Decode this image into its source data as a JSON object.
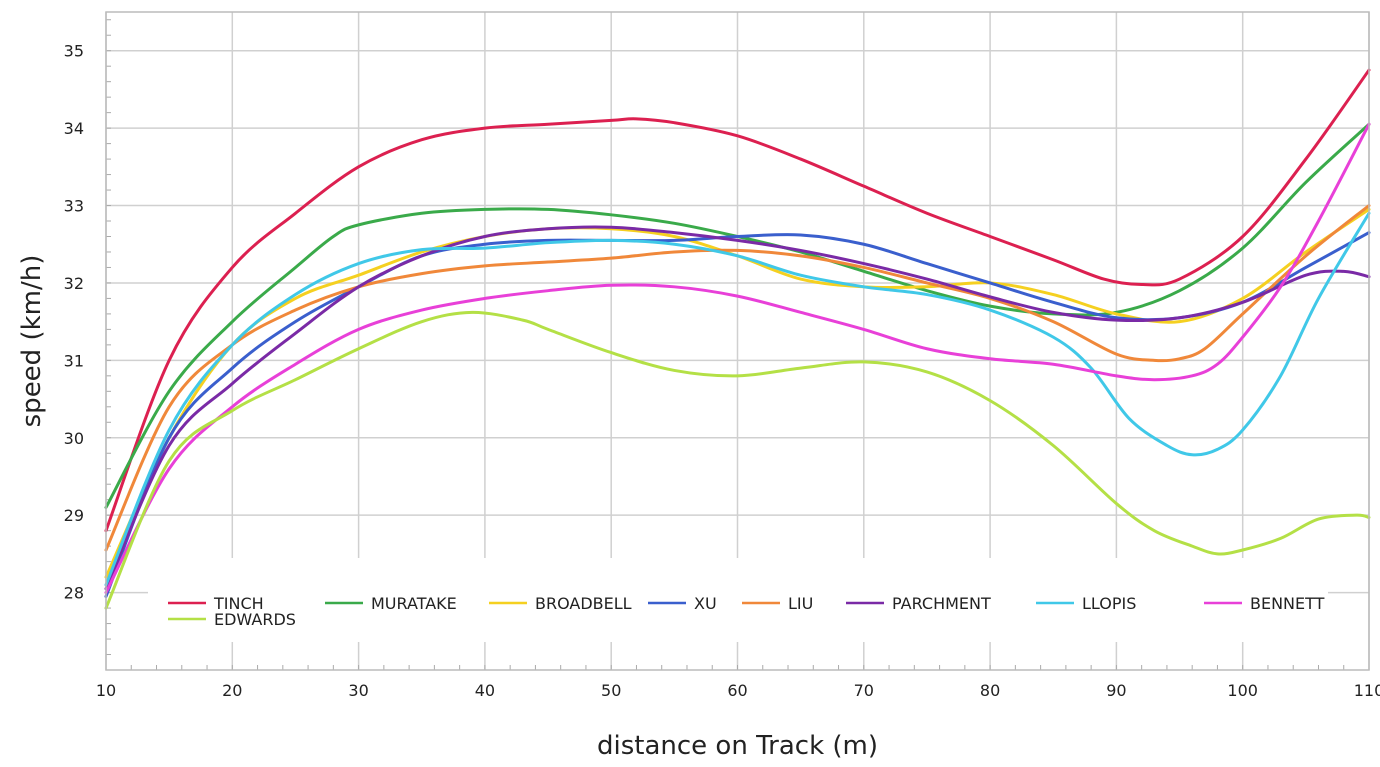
{
  "chart_data": {
    "type": "line",
    "title": "",
    "xlabel": "distance on Track (m)",
    "ylabel": "speed (km/h)",
    "xlim": [
      10,
      110
    ],
    "ylim": [
      27,
      35.5
    ],
    "x_ticks": [
      10,
      20,
      30,
      40,
      50,
      60,
      70,
      80,
      90,
      100,
      110
    ],
    "y_ticks": [
      28,
      29,
      30,
      31,
      32,
      33,
      34,
      35
    ],
    "grid": true,
    "legend_position": "bottom-left inside plot",
    "series": [
      {
        "name": "TINCH",
        "color": "#dc2050",
        "x": [
          10,
          15,
          20,
          25,
          30,
          35,
          40,
          45,
          50,
          52,
          55,
          60,
          65,
          70,
          75,
          80,
          85,
          89,
          92,
          95,
          100,
          105,
          110
        ],
        "y": [
          28.8,
          31.0,
          32.2,
          32.9,
          33.5,
          33.85,
          34.0,
          34.05,
          34.1,
          34.12,
          34.07,
          33.9,
          33.6,
          33.25,
          32.9,
          32.6,
          32.3,
          32.05,
          31.98,
          32.05,
          32.6,
          33.6,
          34.75
        ]
      },
      {
        "name": "MURATAKE",
        "color": "#3aaa4a",
        "x": [
          10,
          15,
          20,
          25,
          28,
          30,
          35,
          40,
          45,
          50,
          55,
          60,
          65,
          70,
          75,
          80,
          85,
          90,
          95,
          100,
          105,
          110
        ],
        "y": [
          29.1,
          30.6,
          31.5,
          32.2,
          32.6,
          32.75,
          32.9,
          32.95,
          32.95,
          32.88,
          32.77,
          32.6,
          32.4,
          32.15,
          31.9,
          31.7,
          31.6,
          31.62,
          31.9,
          32.45,
          33.3,
          34.05
        ]
      },
      {
        "name": "BROADBELL",
        "color": "#f5d020",
        "x": [
          10,
          15,
          20,
          25,
          30,
          35,
          40,
          45,
          50,
          55,
          60,
          65,
          70,
          75,
          80,
          85,
          90,
          95,
          100,
          105,
          110
        ],
        "y": [
          28.2,
          30.0,
          31.2,
          31.8,
          32.1,
          32.4,
          32.6,
          32.7,
          32.7,
          32.6,
          32.35,
          32.05,
          31.95,
          31.95,
          32.0,
          31.85,
          31.6,
          31.5,
          31.8,
          32.4,
          32.95
        ]
      },
      {
        "name": "XU",
        "color": "#3a5fcd",
        "x": [
          10,
          15,
          20,
          25,
          30,
          35,
          40,
          45,
          50,
          55,
          60,
          65,
          70,
          75,
          80,
          85,
          90,
          95,
          100,
          105,
          110
        ],
        "y": [
          27.95,
          30.0,
          30.9,
          31.5,
          31.95,
          32.35,
          32.5,
          32.55,
          32.55,
          32.55,
          32.6,
          32.62,
          32.5,
          32.25,
          32.0,
          31.75,
          31.55,
          31.55,
          31.75,
          32.2,
          32.65
        ]
      },
      {
        "name": "LIU",
        "color": "#f0883a",
        "x": [
          10,
          15,
          20,
          25,
          30,
          35,
          40,
          45,
          50,
          55,
          60,
          65,
          70,
          75,
          80,
          85,
          90,
          93,
          95,
          97,
          100,
          105,
          110
        ],
        "y": [
          28.55,
          30.4,
          31.2,
          31.65,
          31.95,
          32.12,
          32.22,
          32.27,
          32.32,
          32.4,
          32.42,
          32.35,
          32.2,
          32.0,
          31.8,
          31.5,
          31.08,
          31.0,
          31.02,
          31.15,
          31.6,
          32.35,
          33.0
        ]
      },
      {
        "name": "PARCHMENT",
        "color": "#7a2aa6",
        "x": [
          10,
          15,
          20,
          25,
          30,
          35,
          40,
          45,
          50,
          55,
          60,
          65,
          70,
          75,
          80,
          85,
          90,
          95,
          100,
          105,
          108,
          110
        ],
        "y": [
          28.05,
          29.9,
          30.7,
          31.35,
          31.95,
          32.35,
          32.6,
          32.7,
          32.72,
          32.65,
          32.55,
          32.42,
          32.25,
          32.05,
          31.82,
          31.62,
          31.52,
          31.55,
          31.75,
          32.1,
          32.15,
          32.08
        ]
      },
      {
        "name": "LLOPIS",
        "color": "#40c8e8",
        "x": [
          10,
          15,
          20,
          25,
          30,
          35,
          40,
          45,
          50,
          55,
          60,
          65,
          70,
          75,
          80,
          85,
          88,
          91,
          94,
          96,
          98,
          100,
          103,
          106,
          110
        ],
        "y": [
          28.1,
          30.1,
          31.2,
          31.85,
          32.25,
          32.43,
          32.45,
          32.52,
          32.55,
          32.5,
          32.35,
          32.1,
          31.95,
          31.85,
          31.65,
          31.3,
          30.9,
          30.25,
          29.9,
          29.78,
          29.85,
          30.1,
          30.8,
          31.8,
          32.9
        ]
      },
      {
        "name": "BENNETT",
        "color": "#e840d8",
        "x": [
          10,
          15,
          20,
          25,
          30,
          35,
          40,
          45,
          50,
          55,
          60,
          65,
          70,
          75,
          80,
          85,
          90,
          93,
          96,
          98,
          100,
          103,
          106,
          110
        ],
        "y": [
          28.0,
          29.6,
          30.4,
          30.95,
          31.4,
          31.65,
          31.8,
          31.9,
          31.97,
          31.95,
          31.83,
          31.62,
          31.4,
          31.15,
          31.02,
          30.95,
          30.8,
          30.75,
          30.8,
          30.95,
          31.3,
          31.95,
          32.8,
          34.05
        ]
      },
      {
        "name": "EDWARDS",
        "color": "#b4e046",
        "x": [
          10,
          15,
          20,
          25,
          30,
          35,
          39,
          43,
          45,
          50,
          55,
          60,
          65,
          70,
          75,
          80,
          85,
          90,
          93,
          96,
          98,
          100,
          103,
          106,
          109,
          110
        ],
        "y": [
          27.8,
          29.7,
          30.35,
          30.75,
          31.15,
          31.5,
          31.62,
          31.52,
          31.4,
          31.1,
          30.87,
          30.8,
          30.9,
          30.98,
          30.85,
          30.48,
          29.9,
          29.15,
          28.8,
          28.6,
          28.5,
          28.55,
          28.7,
          28.95,
          29.0,
          28.97
        ]
      }
    ]
  }
}
